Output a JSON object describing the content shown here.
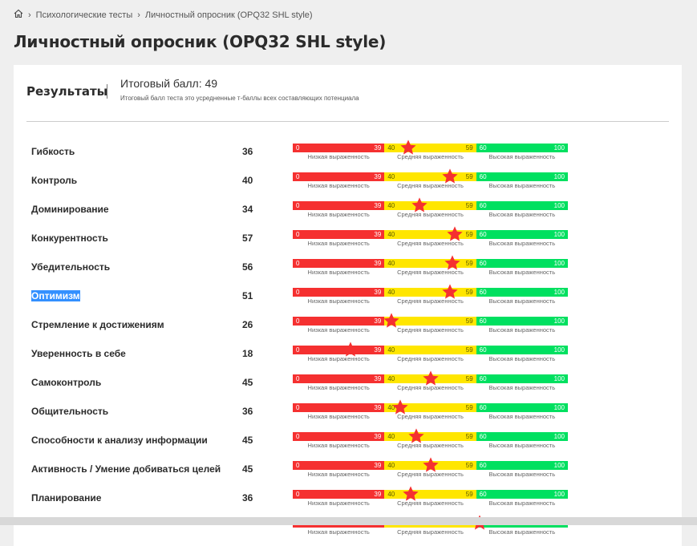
{
  "breadcrumb": {
    "items": [
      "Психологические тесты",
      "Личностный опросник (OPQ32 SHL style)"
    ]
  },
  "page_title": "Личностный опросник (OPQ32 SHL style)",
  "results": {
    "title": "Результаты",
    "total_label": "Итоговый балл: 49",
    "total_note": "Итоговый балл теста это усредненные т-баллы всех составляющих потенциала"
  },
  "scale": {
    "low_min": "0",
    "low_max": "39",
    "mid_min": "40",
    "mid_max": "59",
    "high_min": "60",
    "high_max": "100",
    "low_label": "Низкая выраженность",
    "mid_label": "Средняя выраженность",
    "high_label": "Высокая выраженность"
  },
  "colors": {
    "low": "#f53030",
    "mid": "#ffe600",
    "high": "#00e060"
  },
  "rows": [
    {
      "name": "Гибкость",
      "score": "36",
      "marker": 42
    },
    {
      "name": "Контроль",
      "score": "40",
      "marker": 57
    },
    {
      "name": "Доминирование",
      "score": "34",
      "marker": 46
    },
    {
      "name": "Конкурентность",
      "score": "57",
      "marker": 59
    },
    {
      "name": "Убедительность",
      "score": "56",
      "marker": 58
    },
    {
      "name": "Оптимизм",
      "score": "51",
      "marker": 57,
      "selected": true
    },
    {
      "name": "Стремление к достижениям",
      "score": "26",
      "marker": 36
    },
    {
      "name": "Уверенность в себе",
      "score": "18",
      "marker": 21
    },
    {
      "name": "Самоконтроль",
      "score": "45",
      "marker": 50
    },
    {
      "name": "Общительность",
      "score": "36",
      "marker": 39
    },
    {
      "name": "Способности к анализу информации",
      "score": "45",
      "marker": 45
    },
    {
      "name": "Активность / Умение добиваться целей",
      "score": "45",
      "marker": 50
    },
    {
      "name": "Планирование",
      "score": "36",
      "marker": 43
    },
    {
      "name": "",
      "score": "",
      "marker": 68
    }
  ]
}
